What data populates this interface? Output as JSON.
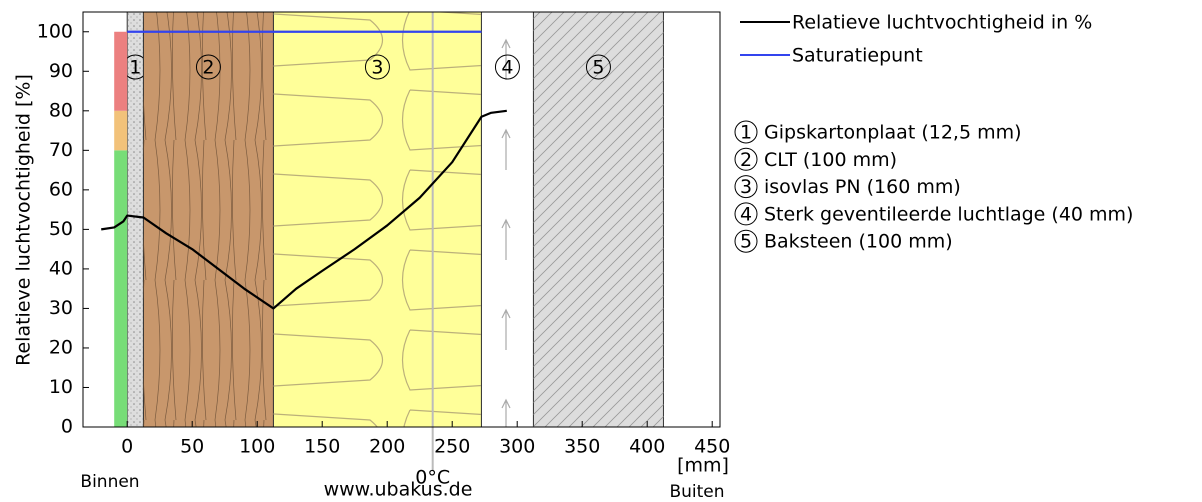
{
  "chart_data": {
    "type": "line",
    "ylabel": "Relatieve luchtvochtigheid [%]",
    "xunit": "[mm]",
    "inside_label": "Binnen",
    "outside_label": "Buiten",
    "watermark": "www.ubakus.de",
    "xlim": [
      -34,
      456
    ],
    "ylim": [
      0,
      105
    ],
    "xticks": [
      0,
      50,
      100,
      150,
      200,
      250,
      300,
      350,
      400,
      450
    ],
    "yticks": [
      0,
      10,
      20,
      30,
      40,
      50,
      60,
      70,
      80,
      90,
      100
    ],
    "freezing": {
      "x": 235,
      "label": "0°C",
      "color": "#bbbbbb"
    },
    "comfort_zones": [
      {
        "ylim": [
          0,
          70
        ],
        "color": "#77dd77"
      },
      {
        "ylim": [
          70,
          80
        ],
        "color": "#f2c27a"
      },
      {
        "ylim": [
          80,
          100
        ],
        "color": "#ec8080"
      }
    ],
    "layers": [
      {
        "number": "1",
        "label": "Gipskartonplaat (12,5 mm)",
        "x": [
          0,
          12.5
        ],
        "color": "#dddddd",
        "pattern": "dots"
      },
      {
        "number": "2",
        "label": "CLT (100 mm)",
        "x": [
          12.5,
          112.5
        ],
        "color": "#c8976c",
        "pattern": "wood"
      },
      {
        "number": "3",
        "label": "isovlas PN (160 mm)",
        "x": [
          112.5,
          272.5
        ],
        "color": "#ffff99",
        "pattern": "insulation"
      },
      {
        "number": "4",
        "label": "Sterk geventileerde luchtlage (40 mm)",
        "x": [
          272.5,
          312.5
        ],
        "color": "#ffffff",
        "pattern": "air"
      },
      {
        "number": "5",
        "label": "Baksteen (100 mm)",
        "x": [
          312.5,
          412.5
        ],
        "color": "#dddddd",
        "pattern": "hatch"
      }
    ],
    "series": [
      {
        "name": "Relatieve luchtvochtigheid in %",
        "color": "#000000",
        "x": [
          -20,
          -10,
          -3,
          0,
          12.5,
          30,
          50,
          70,
          90,
          112.5,
          130,
          150,
          175,
          200,
          225,
          250,
          272.5,
          280,
          292
        ],
        "values": [
          50,
          50.5,
          52,
          53.5,
          53,
          49,
          45,
          40,
          35,
          30,
          35,
          39.5,
          45,
          51,
          58,
          67,
          78.5,
          79.5,
          80
        ]
      },
      {
        "name": "Saturatiepunt",
        "color": "#3344ee",
        "x": [
          0,
          272.5
        ],
        "values": [
          100,
          100
        ]
      }
    ]
  }
}
